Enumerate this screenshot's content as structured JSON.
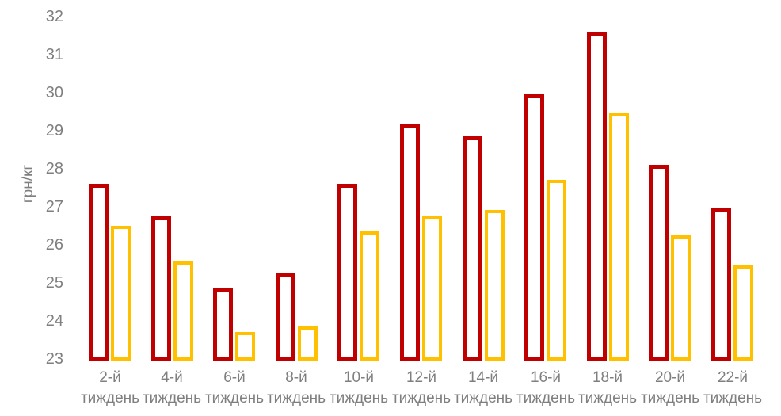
{
  "chart_data": {
    "type": "bar",
    "title": "",
    "xlabel": "",
    "ylabel": "грн/кг",
    "ylim": [
      23,
      32
    ],
    "y_ticks": [
      32,
      31,
      30,
      29,
      28,
      27,
      26,
      25,
      24,
      23
    ],
    "categories": [
      "2-й",
      "4-й",
      "6-й",
      "8-й",
      "10-й",
      "12-й",
      "14-й",
      "16-й",
      "18-й",
      "20-й",
      "22-й"
    ],
    "category_suffix": "тиждень",
    "series": [
      {
        "name": "dark-red-series",
        "color": "#C00000",
        "values": [
          27.65,
          26.8,
          24.9,
          25.3,
          27.65,
          29.2,
          28.9,
          30.0,
          31.65,
          28.15,
          27.0
        ]
      },
      {
        "name": "orange-series",
        "color": "#FFC000",
        "values": [
          26.55,
          25.6,
          23.75,
          23.9,
          26.4,
          26.8,
          26.95,
          27.75,
          29.5,
          26.3,
          25.5
        ]
      }
    ],
    "legend_position": "none",
    "grid": "none",
    "bar_style": "hollow-outline"
  },
  "colors": {
    "axis_text": "#7f7f7f",
    "background": "#ffffff"
  }
}
